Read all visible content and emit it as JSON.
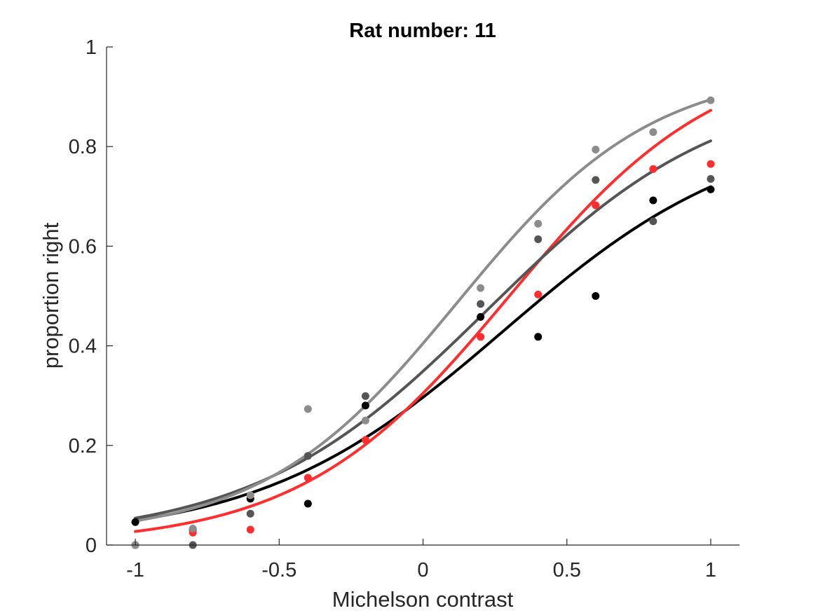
{
  "chart_data": {
    "type": "scatter",
    "title": "Rat number: 11",
    "xlabel": "Michelson contrast",
    "ylabel": "proportion right",
    "xlim": [
      -1.1,
      1.1
    ],
    "ylim": [
      0,
      1
    ],
    "xticks": [
      -1,
      -0.5,
      0,
      0.5,
      1
    ],
    "xtick_labels": [
      "-1",
      "-0.5",
      "0",
      "0.5",
      "1"
    ],
    "yticks": [
      0,
      0.2,
      0.4,
      0.6,
      0.8,
      1
    ],
    "ytick_labels": [
      "0",
      "0.2",
      "0.4",
      "0.6",
      "0.8",
      "1"
    ],
    "grid": false,
    "legend": "none",
    "series": [
      {
        "color": "#000000",
        "x": [
          -1,
          -0.8,
          -0.6,
          -0.4,
          -0.2,
          0.2,
          0.4,
          0.6,
          0.8,
          1
        ],
        "points": [
          0.046,
          0.031,
          0.093,
          0.083,
          0.28,
          0.458,
          0.418,
          0.5,
          0.692,
          0.714
        ],
        "fit": {
          "lower": 0.01,
          "upper": 0.85,
          "midpoint": 0.28,
          "slope": 2.35
        }
      },
      {
        "color": "#ff2d2d",
        "x": [
          -1,
          -0.8,
          -0.6,
          -0.4,
          -0.2,
          0.2,
          0.4,
          0.6,
          0.8,
          1
        ],
        "points": [
          0.0,
          0.025,
          0.031,
          0.135,
          0.211,
          0.418,
          0.503,
          0.682,
          0.755,
          0.765
        ],
        "fit": {
          "lower": 0.0,
          "upper": 1.0,
          "midpoint": 0.3,
          "slope": 2.75
        }
      },
      {
        "color": "#555555",
        "x": [
          -1,
          -0.8,
          -0.6,
          -0.4,
          -0.2,
          0.2,
          0.4,
          0.6,
          0.8,
          1
        ],
        "points": [
          0.0,
          0.0,
          0.063,
          0.179,
          0.299,
          0.484,
          0.614,
          0.733,
          0.65,
          0.735
        ],
        "fit": {
          "lower": 0.01,
          "upper": 0.93,
          "midpoint": 0.22,
          "slope": 2.45
        }
      },
      {
        "color": "#8c8c8c",
        "x": [
          -1,
          -0.8,
          -0.6,
          -0.4,
          -0.2,
          0.2,
          0.4,
          0.6,
          0.8,
          1
        ],
        "points": [
          0.0,
          0.033,
          0.1,
          0.273,
          0.25,
          0.516,
          0.645,
          0.794,
          0.829,
          0.893
        ],
        "fit": {
          "lower": 0.015,
          "upper": 0.96,
          "midpoint": 0.12,
          "slope": 2.95
        }
      }
    ]
  }
}
